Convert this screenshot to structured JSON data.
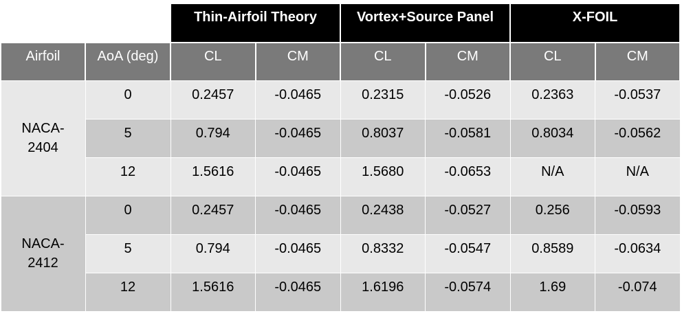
{
  "table": {
    "group_headers": [
      "Thin-Airfoil Theory",
      "Vortex+Source Panel",
      "X-FOIL"
    ],
    "column_headers": [
      "Airfoil",
      "AoA (deg)",
      "CL",
      "CM",
      "CL",
      "CM",
      "CL",
      "CM"
    ],
    "groups": [
      {
        "airfoil": "NACA-\n2404",
        "rows": [
          {
            "aoa": "0",
            "vals": [
              "0.2457",
              "-0.0465",
              "0.2315",
              "-0.0526",
              "0.2363",
              "-0.0537"
            ]
          },
          {
            "aoa": "5",
            "vals": [
              "0.794",
              "-0.0465",
              "0.8037",
              "-0.0581",
              "0.8034",
              "-0.0562"
            ]
          },
          {
            "aoa": "12",
            "vals": [
              "1.5616",
              "-0.0465",
              "1.5680",
              "-0.0653",
              "N/A",
              "N/A"
            ]
          }
        ]
      },
      {
        "airfoil": "NACA-\n2412",
        "rows": [
          {
            "aoa": "0",
            "vals": [
              "0.2457",
              "-0.0465",
              "0.2438",
              "-0.0527",
              "0.256",
              "-0.0593"
            ]
          },
          {
            "aoa": "5",
            "vals": [
              "0.794",
              "-0.0465",
              "0.8332",
              "-0.0547",
              "0.8589",
              "-0.0634"
            ]
          },
          {
            "aoa": "12",
            "vals": [
              "1.5616",
              "-0.0465",
              "1.6196",
              "-0.0574",
              "1.69",
              "-0.074"
            ]
          }
        ]
      }
    ]
  },
  "colors": {
    "group_header_bg": "#000000",
    "column_header_bg": "#7a7a7a",
    "row_light": "#e8e8e8",
    "row_dark": "#c9c9c9"
  }
}
